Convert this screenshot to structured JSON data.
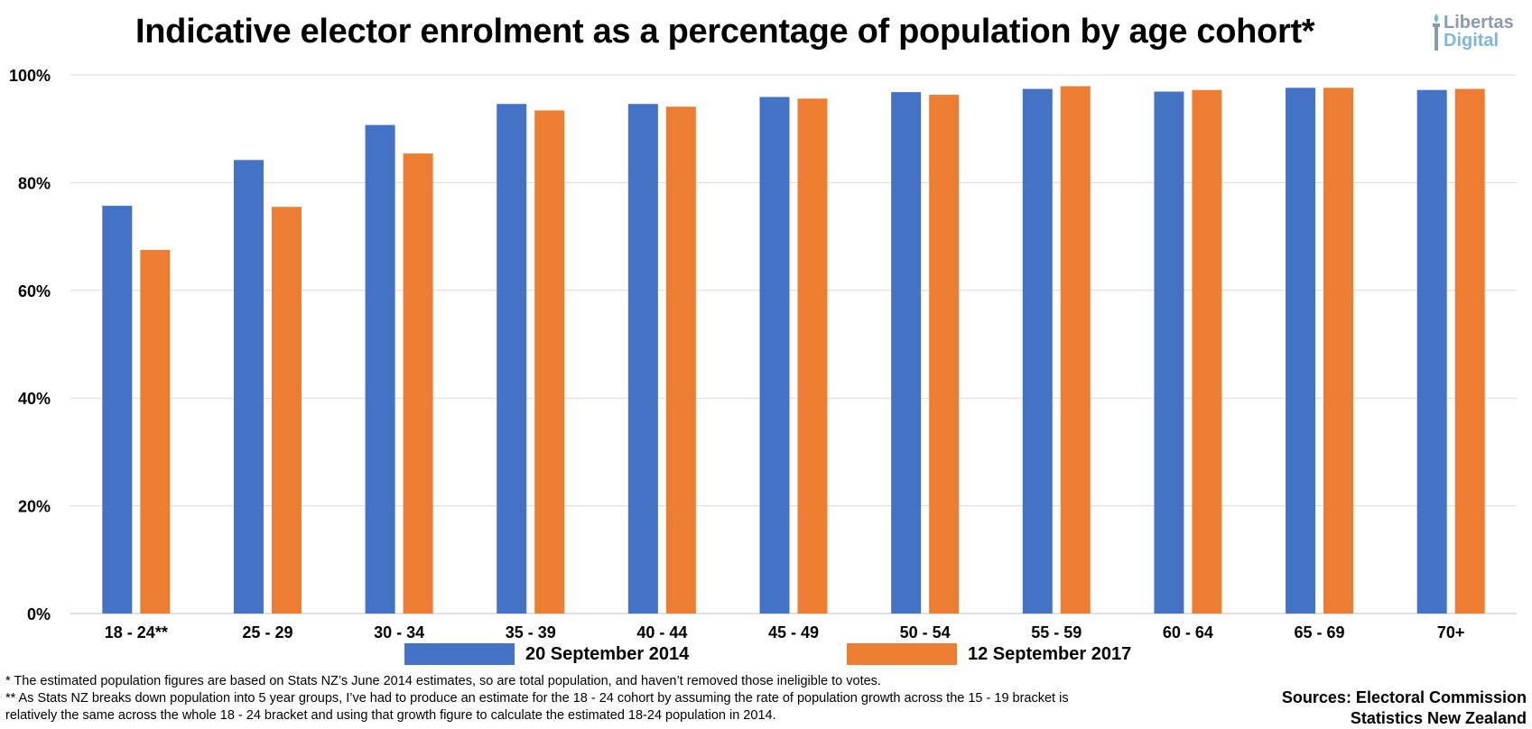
{
  "title": "Indicative elector enrolment as a percentage of population by age cohort*",
  "logo": {
    "line1": "Libertas",
    "line2": "Digital",
    "icon": "torch-icon"
  },
  "colors": {
    "series_2014": "#4472c4",
    "series_2017": "#ed7d31",
    "grid": "#d9d9d9",
    "axis": "#bfbfbf"
  },
  "chart_data": {
    "type": "bar",
    "title": "Indicative elector enrolment as a percentage of population by age cohort*",
    "xlabel": "",
    "ylabel": "",
    "ylim": [
      0,
      100
    ],
    "yticks": [
      0,
      20,
      40,
      60,
      80,
      100
    ],
    "ytick_labels": [
      "0%",
      "20%",
      "40%",
      "60%",
      "80%",
      "100%"
    ],
    "grid": true,
    "legend_position": "bottom",
    "categories": [
      "18 - 24**",
      "25 - 29",
      "30 - 34",
      "35 - 39",
      "40 - 44",
      "45 - 49",
      "50 - 54",
      "55 - 59",
      "60 - 64",
      "65 - 69",
      "70+"
    ],
    "series": [
      {
        "name": "20 September 2014",
        "values": [
          75.7,
          84.2,
          90.7,
          94.6,
          94.6,
          95.9,
          96.8,
          97.4,
          96.9,
          97.6,
          97.2
        ]
      },
      {
        "name": "12 September 2017",
        "values": [
          67.5,
          75.5,
          85.4,
          93.4,
          94.1,
          95.6,
          96.3,
          97.9,
          97.2,
          97.6,
          97.4
        ]
      }
    ]
  },
  "footnotes": [
    "* The estimated population figures are based on Stats NZ’s June 2014 estimates, so are total population, and haven’t removed those ineligible to votes.",
    "** As Stats NZ breaks down population into 5 year groups, I’ve had to produce an estimate for the 18 - 24 cohort by assuming the rate of population growth across the 15 - 19 bracket is",
    "relatively the same across the whole 18 - 24 bracket and using that growth figure to calculate the estimated 18-24 population in 2014."
  ],
  "sources": [
    "Sources: Electoral Commission",
    "Statistics New Zealand"
  ]
}
